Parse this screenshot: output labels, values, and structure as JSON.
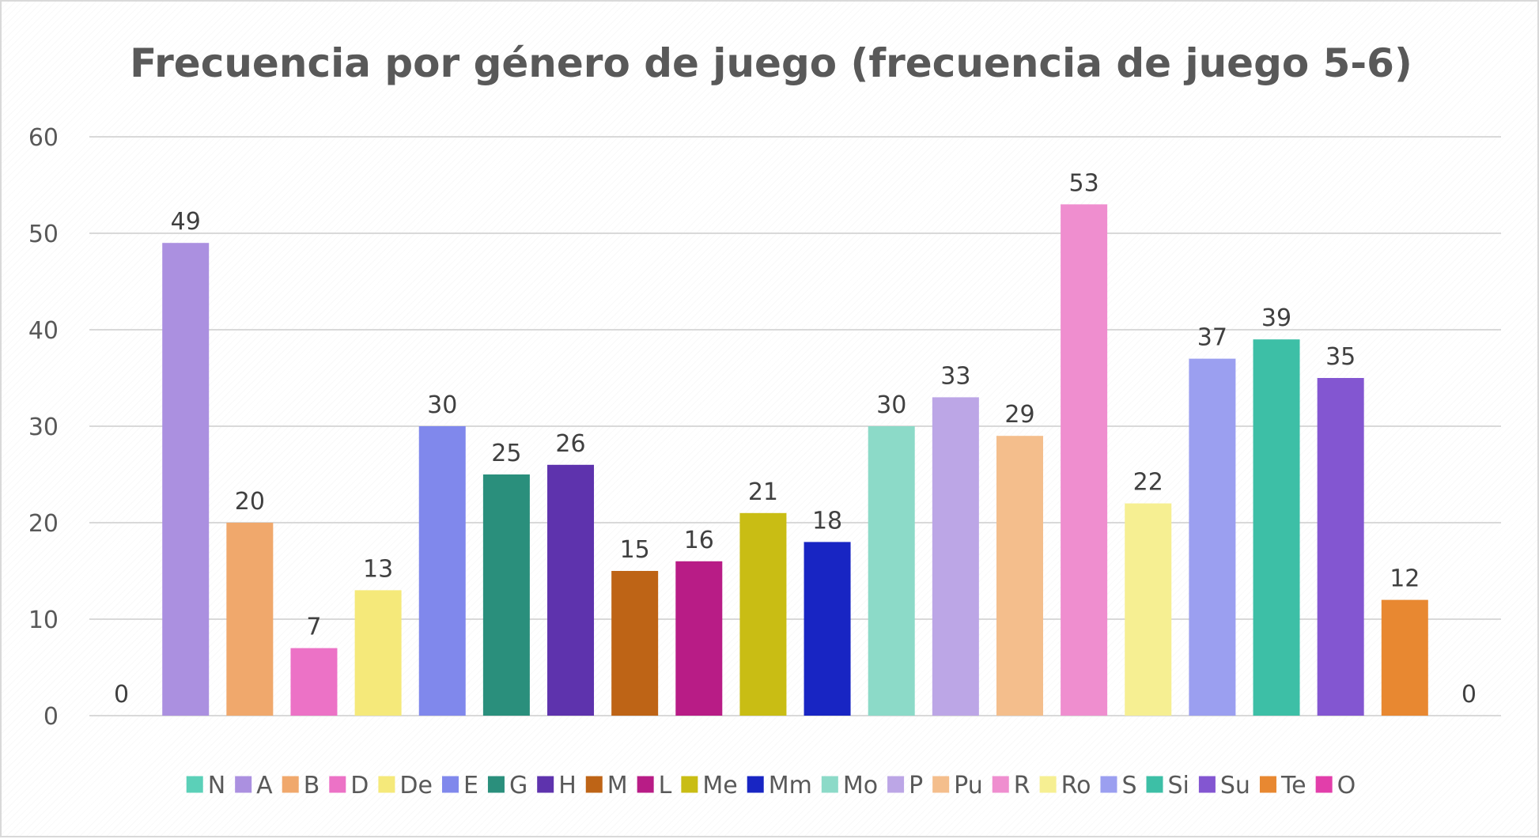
{
  "chart_data": {
    "type": "bar",
    "title": "Frecuencia por género de juego (frecuencia de juego 5-6)",
    "xlabel": "",
    "ylabel": "",
    "ylim": [
      0,
      60
    ],
    "yticks": [
      0,
      10,
      20,
      30,
      40,
      50,
      60
    ],
    "grid": true,
    "legend_position": "bottom",
    "show_data_labels": true,
    "categories": [
      "N",
      "A",
      "B",
      "D",
      "De",
      "E",
      "G",
      "H",
      "M",
      "L",
      "Me",
      "Mm",
      "Mo",
      "P",
      "Pu",
      "R",
      "Ro",
      "S",
      "Si",
      "Su",
      "Te",
      "O"
    ],
    "values": [
      0,
      49,
      20,
      7,
      13,
      30,
      25,
      26,
      15,
      16,
      21,
      18,
      30,
      33,
      29,
      53,
      22,
      37,
      39,
      35,
      12,
      0
    ],
    "colors": [
      "#5bd0b8",
      "#ab90e0",
      "#f0a86c",
      "#ec72c6",
      "#f5e97a",
      "#8088ec",
      "#2a8f7c",
      "#5e33ad",
      "#be6416",
      "#b81c86",
      "#c9bd14",
      "#1825c3",
      "#8cdac8",
      "#bca6e6",
      "#f4be8c",
      "#ef8ecf",
      "#f6ef92",
      "#9b9ff0",
      "#3dbfa6",
      "#8356d1",
      "#e88831",
      "#e23eaa"
    ]
  }
}
